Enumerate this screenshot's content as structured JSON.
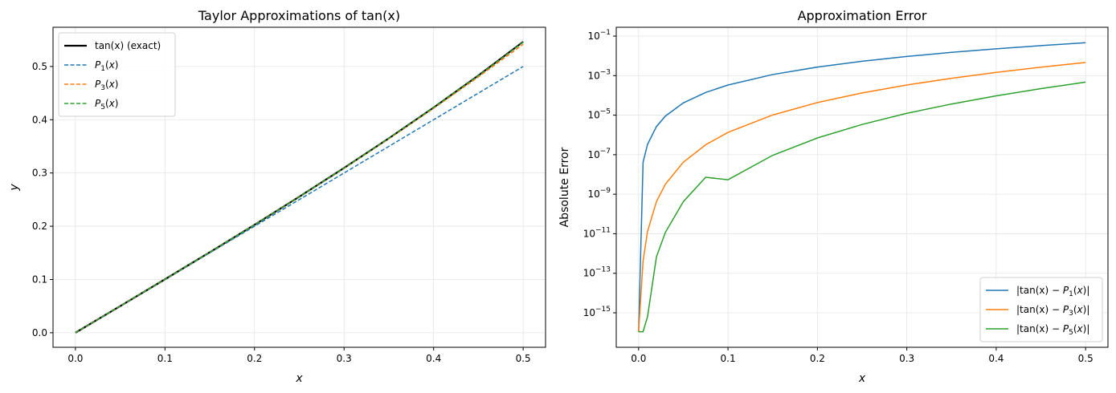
{
  "chart_data": [
    {
      "type": "line",
      "title": "Taylor Approximations of tan(x)",
      "xlabel": "x",
      "ylabel": "y",
      "xlim": [
        -0.025,
        0.525
      ],
      "ylim": [
        -0.0273,
        0.5736
      ],
      "grid": true,
      "legend_placement": "top-left",
      "xticks": [
        0.0,
        0.1,
        0.2,
        0.3,
        0.4,
        0.5
      ],
      "xtick_labels": [
        "0.0",
        "0.1",
        "0.2",
        "0.3",
        "0.4",
        "0.5"
      ],
      "yticks": [
        0.0,
        0.1,
        0.2,
        0.3,
        0.4,
        0.5
      ],
      "ytick_labels": [
        "0.0",
        "0.1",
        "0.2",
        "0.3",
        "0.4",
        "0.5"
      ],
      "x": [
        0,
        0.05,
        0.1,
        0.15,
        0.2,
        0.25,
        0.3,
        0.35,
        0.4,
        0.45,
        0.5
      ],
      "series": [
        {
          "name": "tan(x) (exact)",
          "color": "#000000",
          "style": "solid",
          "values": [
            0,
            0.050042,
            0.100335,
            0.151135,
            0.20271,
            0.255342,
            0.309336,
            0.365028,
            0.422793,
            0.483055,
            0.546302
          ]
        },
        {
          "name": "P1(x)",
          "color": "#1f77b4",
          "style": "dashed",
          "values": [
            0,
            0.05,
            0.1,
            0.15,
            0.2,
            0.25,
            0.3,
            0.35,
            0.4,
            0.45,
            0.5
          ]
        },
        {
          "name": "P3(x)",
          "color": "#ff7f0e",
          "style": "dashed",
          "values": [
            0,
            0.050042,
            0.100333,
            0.151125,
            0.202667,
            0.255208,
            0.309,
            0.364292,
            0.421333,
            0.480375,
            0.541667
          ]
        },
        {
          "name": "P5(x)",
          "color": "#2ca02c",
          "style": "dashed",
          "values": [
            0,
            0.050042,
            0.100335,
            0.151135,
            0.202709,
            0.255339,
            0.309324,
            0.364991,
            0.4227,
            0.482843,
            0.545833
          ]
        }
      ]
    },
    {
      "type": "line",
      "title": "Approximation Error",
      "xlabel": "x",
      "ylabel": "Absolute Error",
      "yscale": "log",
      "xlim": [
        -0.025,
        0.525
      ],
      "ylim": [
        1.8e-17,
        0.28
      ],
      "grid": true,
      "legend_placement": "bottom-right",
      "xticks": [
        0.0,
        0.1,
        0.2,
        0.3,
        0.4,
        0.5
      ],
      "xtick_labels": [
        "0.0",
        "0.1",
        "0.2",
        "0.3",
        "0.4",
        "0.5"
      ],
      "yticks_exp": [
        -1,
        -3,
        -5,
        -7,
        -9,
        -11,
        -13,
        -15
      ],
      "x": [
        0,
        0.005,
        0.01,
        0.02,
        0.03,
        0.05,
        0.075,
        0.1,
        0.15,
        0.2,
        0.25,
        0.3,
        0.35,
        0.4,
        0.45,
        0.5
      ],
      "series": [
        {
          "name": "|tan(x) − P1(x)|",
          "color": "#1f77b4",
          "values": [
            1.1e-16,
            4.17e-08,
            3.33e-07,
            2.67e-06,
            9e-06,
            4.17e-05,
            0.000141,
            0.0003347,
            0.001135,
            0.00271,
            0.005342,
            0.009336,
            0.015028,
            0.022793,
            0.033055,
            0.046302
          ]
        },
        {
          "name": "|tan(x) − P3(x)|",
          "color": "#ff7f0e",
          "values": [
            1.1e-16,
            4.17e-13,
            1.33e-11,
            4.27e-10,
            3.24e-09,
            4.17e-08,
            3.17e-07,
            1.339e-06,
            1.022e-05,
            4.34e-05,
            0.0001336,
            0.000336,
            0.000736,
            0.00146,
            0.00268,
            0.004636
          ]
        },
        {
          "name": "|tan(x) − P5(x)|",
          "color": "#2ca02c",
          "values": [
            1.1e-16,
            1.1e-16,
            6.4e-16,
            6.9e-13,
            1.18e-11,
            4.2e-10,
            7.2e-09,
            5.42e-09,
            9.3e-08,
            7.03e-07,
            3.38e-06,
            1.24e-05,
            3.66e-05,
            9.45e-05,
            0.00022,
            0.000469
          ]
        }
      ]
    }
  ]
}
